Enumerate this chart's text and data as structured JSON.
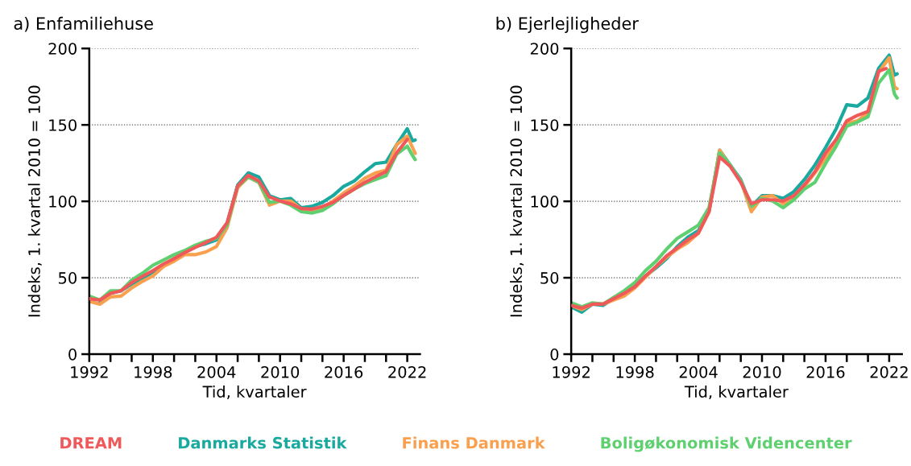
{
  "chart_data": [
    {
      "type": "line",
      "title": "a) Enfamiliehuse",
      "xlabel": "Tid, kvartaler",
      "ylabel": "Indeks, 1. kvartal 2010 = 100",
      "x": [
        1992,
        1993,
        1994,
        1995,
        1996,
        1997,
        1998,
        1999,
        2000,
        2001,
        2002,
        2003,
        2004,
        2005,
        2006,
        2007,
        2008,
        2009,
        2010,
        2011,
        2012,
        2013,
        2014,
        2015,
        2016,
        2017,
        2018,
        2019,
        2020,
        2021,
        2022,
        2022.5,
        2022.75
      ],
      "series": [
        {
          "name": "DREAM",
          "color": "#f0595a",
          "values": [
            36.3,
            35.4,
            39.8,
            41.5,
            46.8,
            50.8,
            54.6,
            59,
            62.5,
            66.4,
            69.9,
            73,
            76.5,
            86,
            110,
            117,
            113.3,
            102.8,
            100.2,
            98.4,
            95.3,
            94.9,
            96.7,
            99.3,
            103.7,
            108,
            112.4,
            116,
            119.4,
            131.7,
            140.5,
            null,
            null
          ]
        },
        {
          "name": "Danmarks Statistik",
          "color": "#1aa99f",
          "values": [
            null,
            33.6,
            39.8,
            41.5,
            45.9,
            49.4,
            53.8,
            58.1,
            62.5,
            66.9,
            70.4,
            72.2,
            74.8,
            85.3,
            110.7,
            118.6,
            115.9,
            103.7,
            101,
            101.9,
            95.8,
            96.7,
            99.3,
            103.7,
            109.8,
            113.3,
            119.4,
            124.7,
            125.6,
            137,
            147.5,
            139.6,
            140.1
          ]
        },
        {
          "name": "Finans Danmark",
          "color": "#f9a04e",
          "values": [
            34.5,
            32.7,
            37.5,
            38,
            43.3,
            47.6,
            51.1,
            57.3,
            60.8,
            65.1,
            65.1,
            66.9,
            70.4,
            82.7,
            108.9,
            115.9,
            112.4,
            97.5,
            100.2,
            100.2,
            94.9,
            94,
            95.8,
            100.2,
            105.4,
            109.8,
            115.1,
            118.6,
            120.3,
            137,
            142.6,
            135.2,
            131.3
          ]
        },
        {
          "name": "Boligøkonomisk Videncenter",
          "color": "#5fd070",
          "values": [
            38,
            35.4,
            41.5,
            41.5,
            48.5,
            52.9,
            58.1,
            61.6,
            65.1,
            67.8,
            71.3,
            73.9,
            75.7,
            84.4,
            109.8,
            115.9,
            112.4,
            99.3,
            100.2,
            97.5,
            93.2,
            92.3,
            94,
            98.4,
            103.7,
            108,
            111.6,
            114.2,
            116.8,
            130.8,
            136.1,
            129.9,
            127.3
          ]
        }
      ],
      "xlim": [
        1992,
        2023.2
      ],
      "xticks": [
        1992,
        {
          "value": 1994,
          "label": null
        },
        {
          "value": 1996,
          "label": null
        },
        1998,
        {
          "value": 2000,
          "label": null
        },
        {
          "value": 2002,
          "label": null
        },
        2004,
        {
          "value": 2006,
          "label": null
        },
        {
          "value": 2008,
          "label": null
        },
        2010,
        {
          "value": 2012,
          "label": null
        },
        {
          "value": 2014,
          "label": null
        },
        2016,
        {
          "value": 2018,
          "label": null
        },
        {
          "value": 2020,
          "label": null
        },
        2022
      ],
      "ylim": [
        0,
        200
      ],
      "yticks": [
        0,
        50,
        100,
        150,
        200
      ],
      "grid": "y",
      "legend": "bottom",
      "marker": "none",
      "line_style": "solid"
    },
    {
      "type": "line",
      "title": "b) Ejerlejligheder",
      "xlabel": "Tid, kvartaler",
      "ylabel": "Indeks, 1. kvartal 2010 = 100",
      "x": [
        1992,
        1993,
        1994,
        1995,
        1996,
        1997,
        1998,
        1999,
        2000,
        2001,
        2002,
        2003,
        2004,
        2005,
        2006,
        2007,
        2008,
        2009,
        2010,
        2011,
        2012,
        2013,
        2014,
        2015,
        2016,
        2017,
        2018,
        2019,
        2020,
        2021,
        2022,
        2022.5,
        2022.75
      ],
      "series": [
        {
          "color": "#f0595a",
          "x": [
            1992,
            1993,
            1994,
            1995,
            1996,
            1997,
            1998,
            1999,
            2000,
            2001,
            2002,
            2003,
            2004,
            2005,
            2006,
            2007,
            2008,
            2009,
            2010,
            2011,
            2012,
            2013,
            2014,
            2015,
            2016,
            2017,
            2018,
            2019,
            2020,
            2021,
            2021.7
          ],
          "values": [
            31.9,
            30.1,
            32.7,
            32.7,
            36.3,
            39.8,
            44.1,
            51.1,
            57.3,
            64.3,
            69.5,
            74.8,
            79.2,
            93.2,
            129,
            122.9,
            112.4,
            98.4,
            101,
            101,
            100.2,
            103.7,
            110.7,
            119.4,
            131.7,
            140.5,
            152.7,
            156.2,
            158.8,
            185.1,
            186.9
          ]
        },
        {
          "color": "#1aa99f",
          "values": [
            31,
            27.5,
            32.7,
            31.9,
            36.3,
            39.8,
            44.1,
            51.1,
            56.4,
            62.5,
            70.4,
            76.5,
            80.9,
            93.2,
            133.5,
            123.8,
            114.2,
            96.7,
            103.7,
            103.7,
            101.9,
            106.3,
            114.2,
            123.8,
            135.2,
            147.5,
            163.2,
            162.3,
            167.6,
            186.9,
            195.6,
            182.5,
            183.4
          ]
        },
        {
          "color": "#f9a04e",
          "values": [
            31.9,
            29.2,
            32.7,
            32.7,
            35.4,
            38,
            43.3,
            50.3,
            57.3,
            63.4,
            68.7,
            73,
            79.2,
            93.2,
            133.5,
            122.9,
            113.3,
            93.2,
            102.8,
            103.7,
            98.4,
            102.8,
            109.8,
            118.6,
            128.2,
            138.7,
            151,
            152.7,
            157.9,
            184.2,
            193.9,
            174.8,
            173.7
          ]
        },
        {
          "color": "#5fd070",
          "values": [
            33.6,
            31,
            33.6,
            32.7,
            37.1,
            41.5,
            46.8,
            54.6,
            60.8,
            68.7,
            75.7,
            80,
            84.4,
            95.8,
            131.7,
            123.8,
            113.3,
            96.7,
            101.9,
            100.2,
            95.8,
            101,
            108,
            112.4,
            124.7,
            136.1,
            149.2,
            151.8,
            155.3,
            177.2,
            186,
            170.2,
            167.6
          ]
        }
      ],
      "xlim": [
        1992,
        2023.2
      ],
      "xticks": [
        1992,
        {
          "value": 1994,
          "label": null
        },
        {
          "value": 1996,
          "label": null
        },
        1998,
        {
          "value": 2000,
          "label": null
        },
        {
          "value": 2002,
          "label": null
        },
        2004,
        {
          "value": 2006,
          "label": null
        },
        {
          "value": 2008,
          "label": null
        },
        2010,
        {
          "value": 2012,
          "label": null
        },
        {
          "value": 2014,
          "label": null
        },
        2016,
        {
          "value": 2018,
          "label": null
        },
        {
          "value": 2020,
          "label": null
        },
        2022
      ],
      "ylim": [
        0,
        200
      ],
      "yticks": [
        0,
        50,
        100,
        150,
        200
      ],
      "grid": "y",
      "marker": "none",
      "line_style": "solid"
    }
  ]
}
